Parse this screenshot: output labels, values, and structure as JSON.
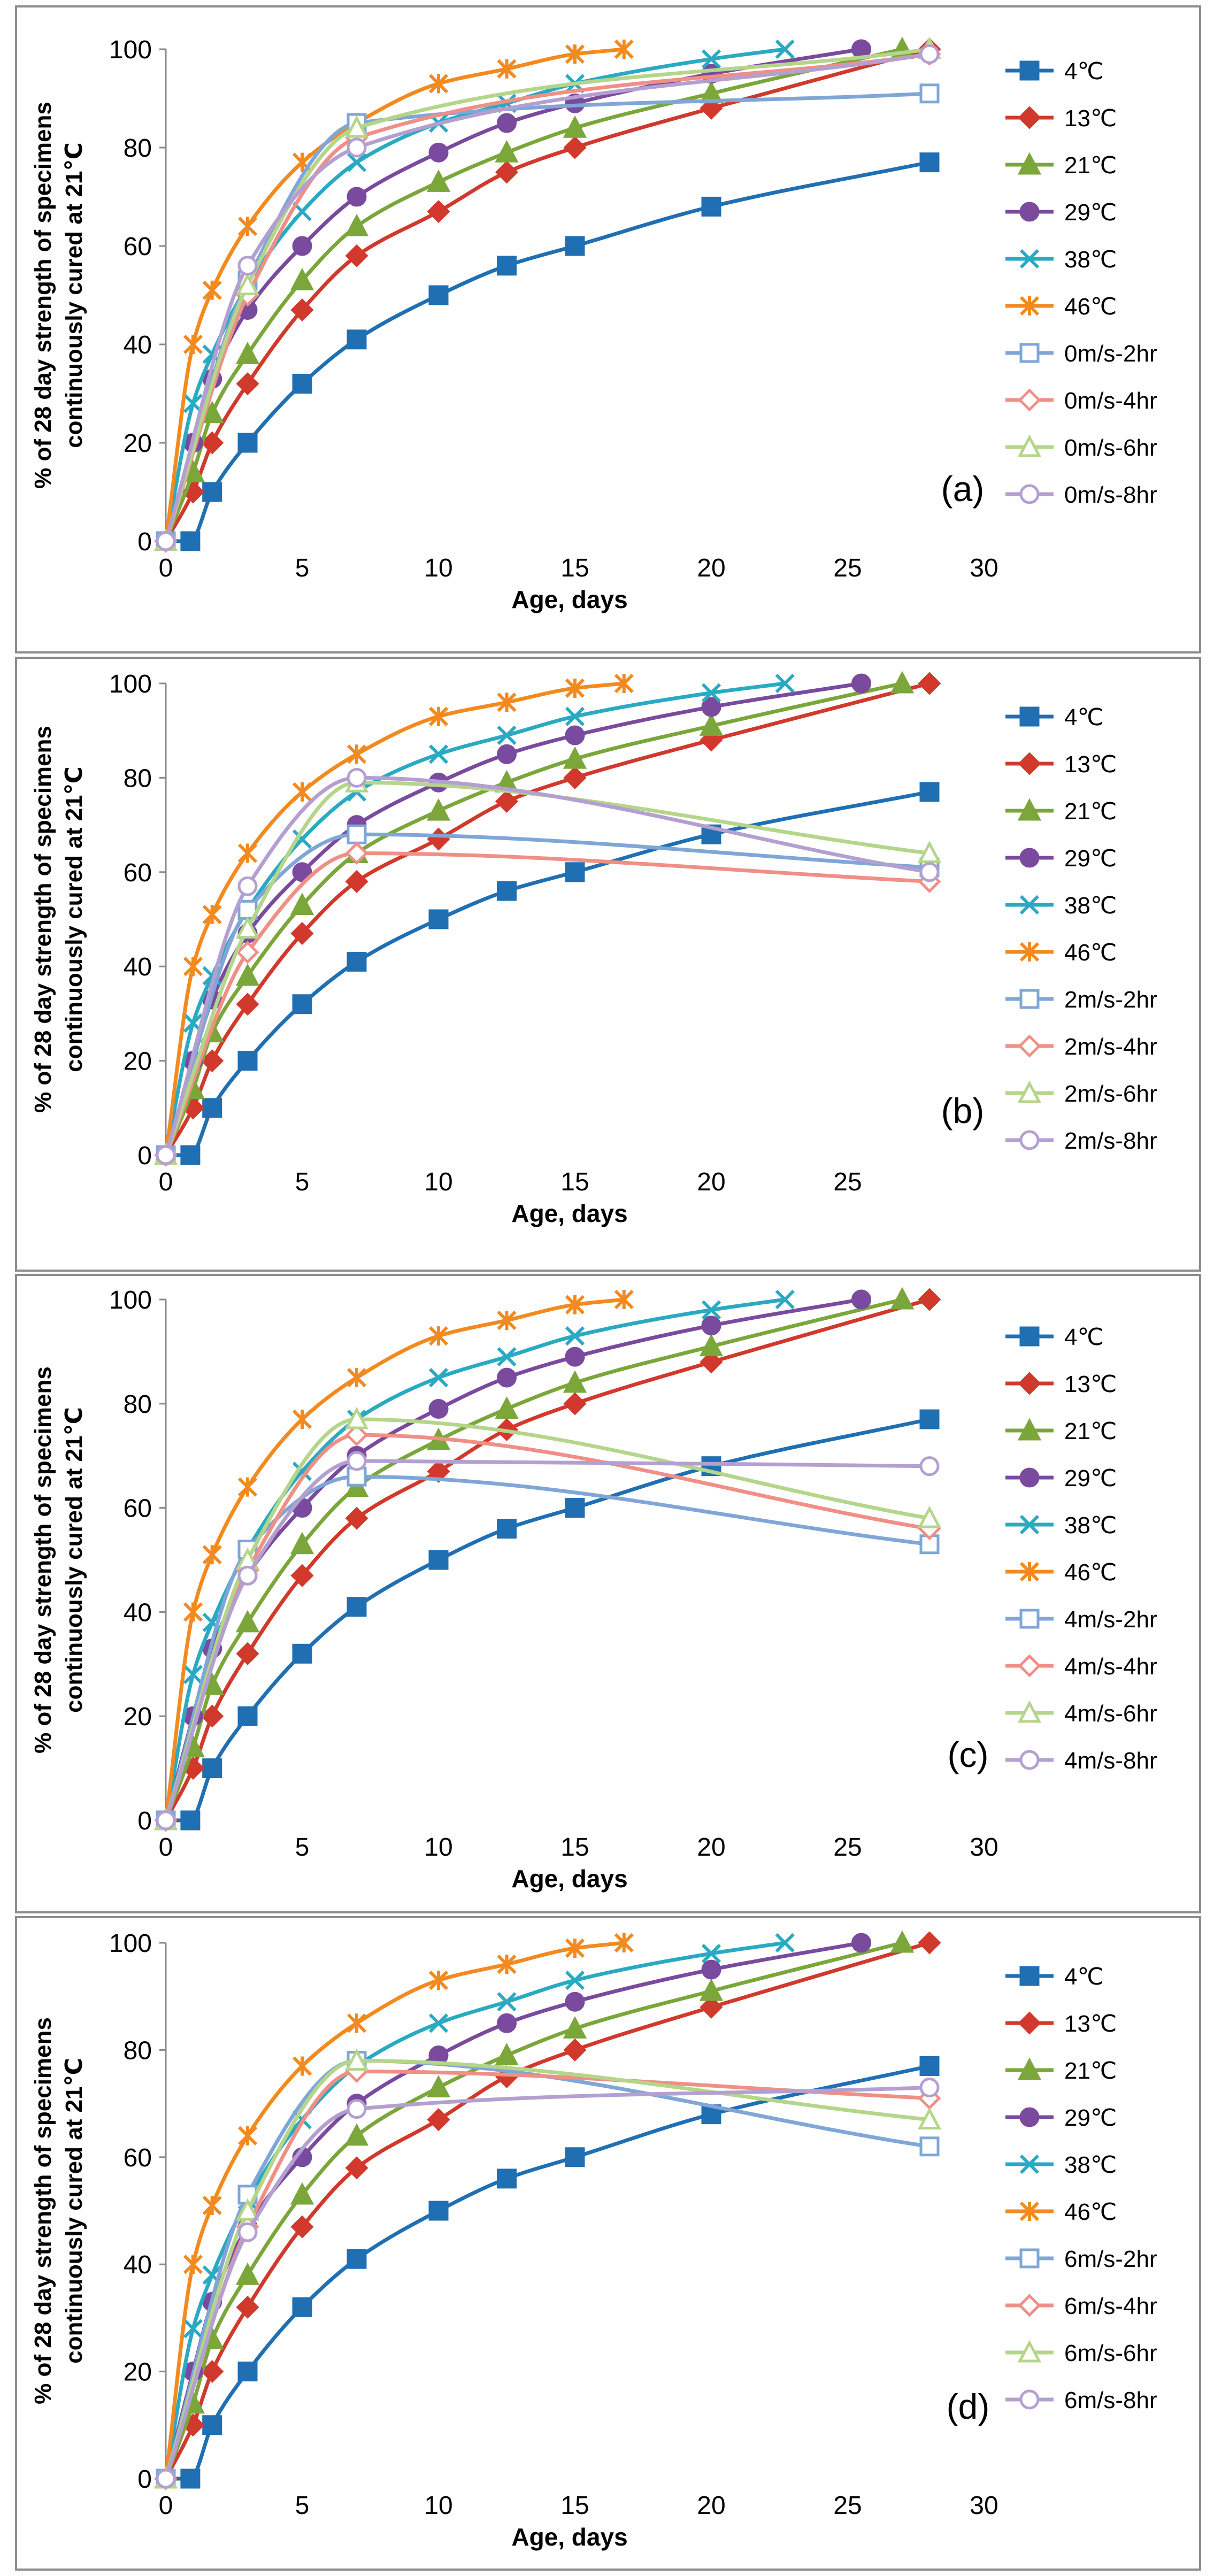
{
  "common": {
    "ylabel_line1": "% of 28 day strength of specimens",
    "ylabel_line2": "continuously cured at 21℃",
    "xlabel": "Age, days",
    "colors": {
      "4C": "#1f6fb2",
      "13C": "#d0392b",
      "21C": "#7aa63a",
      "29C": "#7a4a9e",
      "38C": "#2aaac2",
      "46C": "#f28a1f",
      "w2": "#7fa6d6",
      "w4": "#ef8f86",
      "w6": "#b4d58a",
      "w8": "#b49fd1"
    }
  },
  "chart_data": [
    {
      "type": "line",
      "panel": "(a)",
      "xlabel": "Age, days",
      "xlim": [
        0,
        30
      ],
      "ylim": [
        0,
        100
      ],
      "xticks": [
        0,
        5,
        10,
        15,
        20,
        25,
        30
      ],
      "yticks": [
        0,
        20,
        40,
        60,
        80,
        100
      ],
      "show_xlabel": true,
      "show_30_tick": true,
      "series": [
        {
          "name": "4℃",
          "key": "4C",
          "marker": "square",
          "filled": true,
          "x": [
            0,
            0.9,
            1.7,
            3,
            5,
            7,
            10,
            12.5,
            15,
            20,
            28
          ],
          "y": [
            0,
            0,
            10,
            20,
            32,
            41,
            50,
            56,
            60,
            68,
            77
          ]
        },
        {
          "name": "13℃",
          "key": "13C",
          "marker": "diamond",
          "filled": true,
          "x": [
            0,
            1,
            1.7,
            3,
            5,
            7,
            10,
            12.5,
            15,
            20,
            28
          ],
          "y": [
            0,
            10,
            20,
            32,
            47,
            58,
            67,
            75,
            80,
            88,
            100
          ]
        },
        {
          "name": "21℃",
          "key": "21C",
          "marker": "triangle",
          "filled": true,
          "x": [
            0,
            1,
            1.7,
            3,
            5,
            7,
            10,
            12.5,
            15,
            20,
            27
          ],
          "y": [
            0,
            14,
            26,
            38,
            53,
            64,
            73,
            79,
            84,
            91,
            100
          ]
        },
        {
          "name": "29℃",
          "key": "29C",
          "marker": "circle",
          "filled": true,
          "x": [
            0,
            1,
            1.7,
            3,
            5,
            7,
            10,
            12.5,
            15,
            20,
            25.5
          ],
          "y": [
            0,
            20,
            33,
            47,
            60,
            70,
            79,
            85,
            89,
            95,
            100
          ]
        },
        {
          "name": "38℃",
          "key": "38C",
          "marker": "x",
          "filled": false,
          "x": [
            0,
            1,
            1.7,
            3,
            5,
            7,
            10,
            12.5,
            15,
            20,
            22.7
          ],
          "y": [
            0,
            28,
            38,
            52,
            67,
            77,
            85,
            89,
            93,
            98,
            100
          ]
        },
        {
          "name": "46℃",
          "key": "46C",
          "marker": "asterisk",
          "filled": false,
          "x": [
            0,
            1,
            1.7,
            3,
            5,
            7,
            10,
            12.5,
            15,
            16.8
          ],
          "y": [
            0,
            40,
            51,
            64,
            77,
            85,
            93,
            96,
            99,
            100
          ]
        },
        {
          "name": "0m/s-2hr",
          "key": "w2",
          "marker": "square",
          "filled": false,
          "x": [
            0,
            3,
            7,
            28
          ],
          "y": [
            0,
            53,
            85,
            91
          ]
        },
        {
          "name": "0m/s-4hr",
          "key": "w4",
          "marker": "diamond",
          "filled": false,
          "x": [
            0,
            3,
            7,
            28
          ],
          "y": [
            0,
            50,
            82,
            99
          ]
        },
        {
          "name": "0m/s-6hr",
          "key": "w6",
          "marker": "triangle",
          "filled": false,
          "x": [
            0,
            3,
            7,
            28
          ],
          "y": [
            0,
            52,
            84,
            100
          ]
        },
        {
          "name": "0m/s-8hr",
          "key": "w8",
          "marker": "circle",
          "filled": false,
          "x": [
            0,
            3,
            7,
            28
          ],
          "y": [
            0,
            56,
            80,
            99
          ]
        }
      ]
    },
    {
      "type": "line",
      "panel": "(b)",
      "xlabel": "Age, days",
      "xlim": [
        0,
        30
      ],
      "ylim": [
        0,
        100
      ],
      "xticks": [
        0,
        5,
        10,
        15,
        20,
        25
      ],
      "yticks": [
        0,
        20,
        40,
        60,
        80,
        100
      ],
      "show_xlabel": true,
      "show_30_tick": false,
      "series": [
        {
          "name": "4℃",
          "key": "4C",
          "marker": "square",
          "filled": true,
          "x": [
            0,
            0.9,
            1.7,
            3,
            5,
            7,
            10,
            12.5,
            15,
            20,
            28
          ],
          "y": [
            0,
            0,
            10,
            20,
            32,
            41,
            50,
            56,
            60,
            68,
            77
          ]
        },
        {
          "name": "13℃",
          "key": "13C",
          "marker": "diamond",
          "filled": true,
          "x": [
            0,
            1,
            1.7,
            3,
            5,
            7,
            10,
            12.5,
            15,
            20,
            28
          ],
          "y": [
            0,
            10,
            20,
            32,
            47,
            58,
            67,
            75,
            80,
            88,
            100
          ]
        },
        {
          "name": "21℃",
          "key": "21C",
          "marker": "triangle",
          "filled": true,
          "x": [
            0,
            1,
            1.7,
            3,
            5,
            7,
            10,
            12.5,
            15,
            20,
            27
          ],
          "y": [
            0,
            14,
            26,
            38,
            53,
            64,
            73,
            79,
            84,
            91,
            100
          ]
        },
        {
          "name": "29℃",
          "key": "29C",
          "marker": "circle",
          "filled": true,
          "x": [
            0,
            1,
            1.7,
            3,
            5,
            7,
            10,
            12.5,
            15,
            20,
            25.5
          ],
          "y": [
            0,
            20,
            33,
            47,
            60,
            70,
            79,
            85,
            89,
            95,
            100
          ]
        },
        {
          "name": "38℃",
          "key": "38C",
          "marker": "x",
          "filled": false,
          "x": [
            0,
            1,
            1.7,
            3,
            5,
            7,
            10,
            12.5,
            15,
            20,
            22.7
          ],
          "y": [
            0,
            28,
            38,
            52,
            67,
            77,
            85,
            89,
            93,
            98,
            100
          ]
        },
        {
          "name": "46℃",
          "key": "46C",
          "marker": "asterisk",
          "filled": false,
          "x": [
            0,
            1,
            1.7,
            3,
            5,
            7,
            10,
            12.5,
            15,
            16.8
          ],
          "y": [
            0,
            40,
            51,
            64,
            77,
            85,
            93,
            96,
            99,
            100
          ]
        },
        {
          "name": "2m/s-2hr",
          "key": "w2",
          "marker": "square",
          "filled": false,
          "x": [
            0,
            3,
            7,
            28
          ],
          "y": [
            0,
            52,
            68,
            61
          ]
        },
        {
          "name": "2m/s-4hr",
          "key": "w4",
          "marker": "diamond",
          "filled": false,
          "x": [
            0,
            3,
            7,
            28
          ],
          "y": [
            0,
            43,
            64,
            58
          ]
        },
        {
          "name": "2m/s-6hr",
          "key": "w6",
          "marker": "triangle",
          "filled": false,
          "x": [
            0,
            3,
            7,
            28
          ],
          "y": [
            0,
            48,
            79,
            64
          ]
        },
        {
          "name": "2m/s-8hr",
          "key": "w8",
          "marker": "circle",
          "filled": false,
          "x": [
            0,
            3,
            7,
            28
          ],
          "y": [
            0,
            57,
            80,
            60
          ]
        }
      ]
    },
    {
      "type": "line",
      "panel": "(c)",
      "xlabel": "Age, days",
      "xlim": [
        0,
        30
      ],
      "ylim": [
        0,
        100
      ],
      "xticks": [
        0,
        5,
        10,
        15,
        20,
        25,
        30
      ],
      "yticks": [
        0,
        20,
        40,
        60,
        80,
        100
      ],
      "show_xlabel": true,
      "show_30_tick": true,
      "series": [
        {
          "name": "4℃",
          "key": "4C",
          "marker": "square",
          "filled": true,
          "x": [
            0,
            0.9,
            1.7,
            3,
            5,
            7,
            10,
            12.5,
            15,
            20,
            28
          ],
          "y": [
            0,
            0,
            10,
            20,
            32,
            41,
            50,
            56,
            60,
            68,
            77
          ]
        },
        {
          "name": "13℃",
          "key": "13C",
          "marker": "diamond",
          "filled": true,
          "x": [
            0,
            1,
            1.7,
            3,
            5,
            7,
            10,
            12.5,
            15,
            20,
            28
          ],
          "y": [
            0,
            10,
            20,
            32,
            47,
            58,
            67,
            75,
            80,
            88,
            100
          ]
        },
        {
          "name": "21℃",
          "key": "21C",
          "marker": "triangle",
          "filled": true,
          "x": [
            0,
            1,
            1.7,
            3,
            5,
            7,
            10,
            12.5,
            15,
            20,
            27
          ],
          "y": [
            0,
            14,
            26,
            38,
            53,
            64,
            73,
            79,
            84,
            91,
            100
          ]
        },
        {
          "name": "29℃",
          "key": "29C",
          "marker": "circle",
          "filled": true,
          "x": [
            0,
            1,
            1.7,
            3,
            5,
            7,
            10,
            12.5,
            15,
            20,
            25.5
          ],
          "y": [
            0,
            20,
            33,
            47,
            60,
            70,
            79,
            85,
            89,
            95,
            100
          ]
        },
        {
          "name": "38℃",
          "key": "38C",
          "marker": "x",
          "filled": false,
          "x": [
            0,
            1,
            1.7,
            3,
            5,
            7,
            10,
            12.5,
            15,
            20,
            22.7
          ],
          "y": [
            0,
            28,
            38,
            52,
            67,
            77,
            85,
            89,
            93,
            98,
            100
          ]
        },
        {
          "name": "46℃",
          "key": "46C",
          "marker": "asterisk",
          "filled": false,
          "x": [
            0,
            1,
            1.7,
            3,
            5,
            7,
            10,
            12.5,
            15,
            16.8
          ],
          "y": [
            0,
            40,
            51,
            64,
            77,
            85,
            93,
            96,
            99,
            100
          ]
        },
        {
          "name": "4m/s-2hr",
          "key": "w2",
          "marker": "square",
          "filled": false,
          "x": [
            0,
            3,
            7,
            28
          ],
          "y": [
            0,
            52,
            66,
            53
          ]
        },
        {
          "name": "4m/s-4hr",
          "key": "w4",
          "marker": "diamond",
          "filled": false,
          "x": [
            0,
            3,
            7,
            28
          ],
          "y": [
            0,
            48,
            74,
            56
          ]
        },
        {
          "name": "4m/s-6hr",
          "key": "w6",
          "marker": "triangle",
          "filled": false,
          "x": [
            0,
            3,
            7,
            28
          ],
          "y": [
            0,
            50,
            77,
            58
          ]
        },
        {
          "name": "4m/s-8hr",
          "key": "w8",
          "marker": "circle",
          "filled": false,
          "x": [
            0,
            3,
            7,
            28
          ],
          "y": [
            0,
            47,
            69,
            68
          ]
        }
      ]
    },
    {
      "type": "line",
      "panel": "(d)",
      "xlabel": "Age, days",
      "xlim": [
        0,
        30
      ],
      "ylim": [
        0,
        100
      ],
      "xticks": [
        0,
        5,
        10,
        15,
        20,
        25,
        30
      ],
      "yticks": [
        0,
        20,
        40,
        60,
        80,
        100
      ],
      "show_xlabel": true,
      "show_30_tick": true,
      "series": [
        {
          "name": "4℃",
          "key": "4C",
          "marker": "square",
          "filled": true,
          "x": [
            0,
            0.9,
            1.7,
            3,
            5,
            7,
            10,
            12.5,
            15,
            20,
            28
          ],
          "y": [
            0,
            0,
            10,
            20,
            32,
            41,
            50,
            56,
            60,
            68,
            77
          ]
        },
        {
          "name": "13℃",
          "key": "13C",
          "marker": "diamond",
          "filled": true,
          "x": [
            0,
            1,
            1.7,
            3,
            5,
            7,
            10,
            12.5,
            15,
            20,
            28
          ],
          "y": [
            0,
            10,
            20,
            32,
            47,
            58,
            67,
            75,
            80,
            88,
            100
          ]
        },
        {
          "name": "21℃",
          "key": "21C",
          "marker": "triangle",
          "filled": true,
          "x": [
            0,
            1,
            1.7,
            3,
            5,
            7,
            10,
            12.5,
            15,
            20,
            27
          ],
          "y": [
            0,
            14,
            26,
            38,
            53,
            64,
            73,
            79,
            84,
            91,
            100
          ]
        },
        {
          "name": "29℃",
          "key": "29C",
          "marker": "circle",
          "filled": true,
          "x": [
            0,
            1,
            1.7,
            3,
            5,
            7,
            10,
            12.5,
            15,
            20,
            25.5
          ],
          "y": [
            0,
            20,
            33,
            47,
            60,
            70,
            79,
            85,
            89,
            95,
            100
          ]
        },
        {
          "name": "38℃",
          "key": "38C",
          "marker": "x",
          "filled": false,
          "x": [
            0,
            1,
            1.7,
            3,
            5,
            7,
            10,
            12.5,
            15,
            20,
            22.7
          ],
          "y": [
            0,
            28,
            38,
            52,
            67,
            77,
            85,
            89,
            93,
            98,
            100
          ]
        },
        {
          "name": "46℃",
          "key": "46C",
          "marker": "asterisk",
          "filled": false,
          "x": [
            0,
            1,
            1.7,
            3,
            5,
            7,
            10,
            12.5,
            15,
            16.8
          ],
          "y": [
            0,
            40,
            51,
            64,
            77,
            85,
            93,
            96,
            99,
            100
          ]
        },
        {
          "name": "6m/s-2hr",
          "key": "w2",
          "marker": "square",
          "filled": false,
          "x": [
            0,
            3,
            7,
            28
          ],
          "y": [
            0,
            53,
            78,
            62
          ]
        },
        {
          "name": "6m/s-4hr",
          "key": "w4",
          "marker": "diamond",
          "filled": false,
          "x": [
            0,
            3,
            7,
            28
          ],
          "y": [
            0,
            47,
            76,
            71
          ]
        },
        {
          "name": "6m/s-6hr",
          "key": "w6",
          "marker": "triangle",
          "filled": false,
          "x": [
            0,
            3,
            7,
            28
          ],
          "y": [
            0,
            50,
            78,
            67
          ]
        },
        {
          "name": "6m/s-8hr",
          "key": "w8",
          "marker": "circle",
          "filled": false,
          "x": [
            0,
            3,
            7,
            28
          ],
          "y": [
            0,
            46,
            69,
            73
          ]
        }
      ]
    }
  ]
}
